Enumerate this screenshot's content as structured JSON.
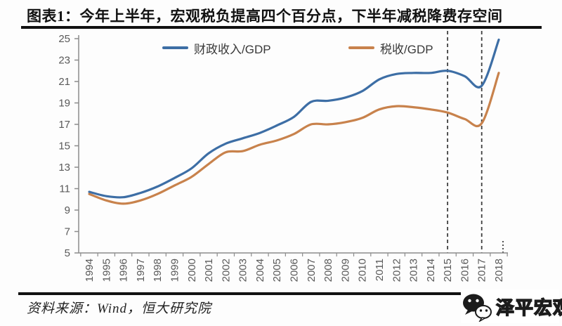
{
  "title": "图表1：今年上半年，宏观税负提高四个百分点，下半年减税降费存空间",
  "source": "资料来源：Wind，恒大研究院",
  "logo": {
    "text": "泽平宏观",
    "icon": "wechat-icon"
  },
  "colors": {
    "fiscal_line": "#3d6ea5",
    "tax_line": "#c8824c",
    "axis": "#8c8c8c",
    "tick_label": "#595959",
    "dashed_line": "#3f3f3f",
    "rule": "#111111"
  },
  "chart_data": {
    "type": "line",
    "title": "图表1：今年上半年，宏观税负提高四个百分点，下半年减税降费存空间",
    "xlabel": "",
    "ylabel": "",
    "x": [
      1994,
      1995,
      1996,
      1997,
      1998,
      1999,
      2000,
      2001,
      2002,
      2003,
      2004,
      2005,
      2006,
      2007,
      2008,
      2009,
      2010,
      2011,
      2012,
      2013,
      2014,
      2015,
      2016,
      2017,
      2018
    ],
    "series": [
      {
        "name": "财政收入/GDP",
        "color_key": "fiscal_line",
        "values": [
          10.7,
          10.3,
          10.2,
          10.6,
          11.2,
          12.0,
          12.9,
          14.3,
          15.2,
          15.7,
          16.2,
          16.9,
          17.7,
          19.1,
          19.2,
          19.5,
          20.1,
          21.2,
          21.7,
          21.8,
          21.8,
          22.0,
          21.5,
          20.6,
          24.9
        ]
      },
      {
        "name": "税收/GDP",
        "color_key": "tax_line",
        "values": [
          10.5,
          9.9,
          9.6,
          9.9,
          10.5,
          11.3,
          12.1,
          13.3,
          14.4,
          14.5,
          15.1,
          15.5,
          16.1,
          17.0,
          17.0,
          17.2,
          17.6,
          18.4,
          18.7,
          18.6,
          18.4,
          18.1,
          17.5,
          17.1,
          21.8
        ]
      }
    ],
    "ylim": [
      5,
      25
    ],
    "yticks": [
      5,
      7,
      9,
      11,
      13,
      15,
      17,
      19,
      21,
      23,
      25
    ],
    "grid": false,
    "legend_position": "top-center",
    "annotations": {
      "dashed_vlines_x": [
        2015,
        2017
      ],
      "dotted_stub_x": 2018
    }
  }
}
